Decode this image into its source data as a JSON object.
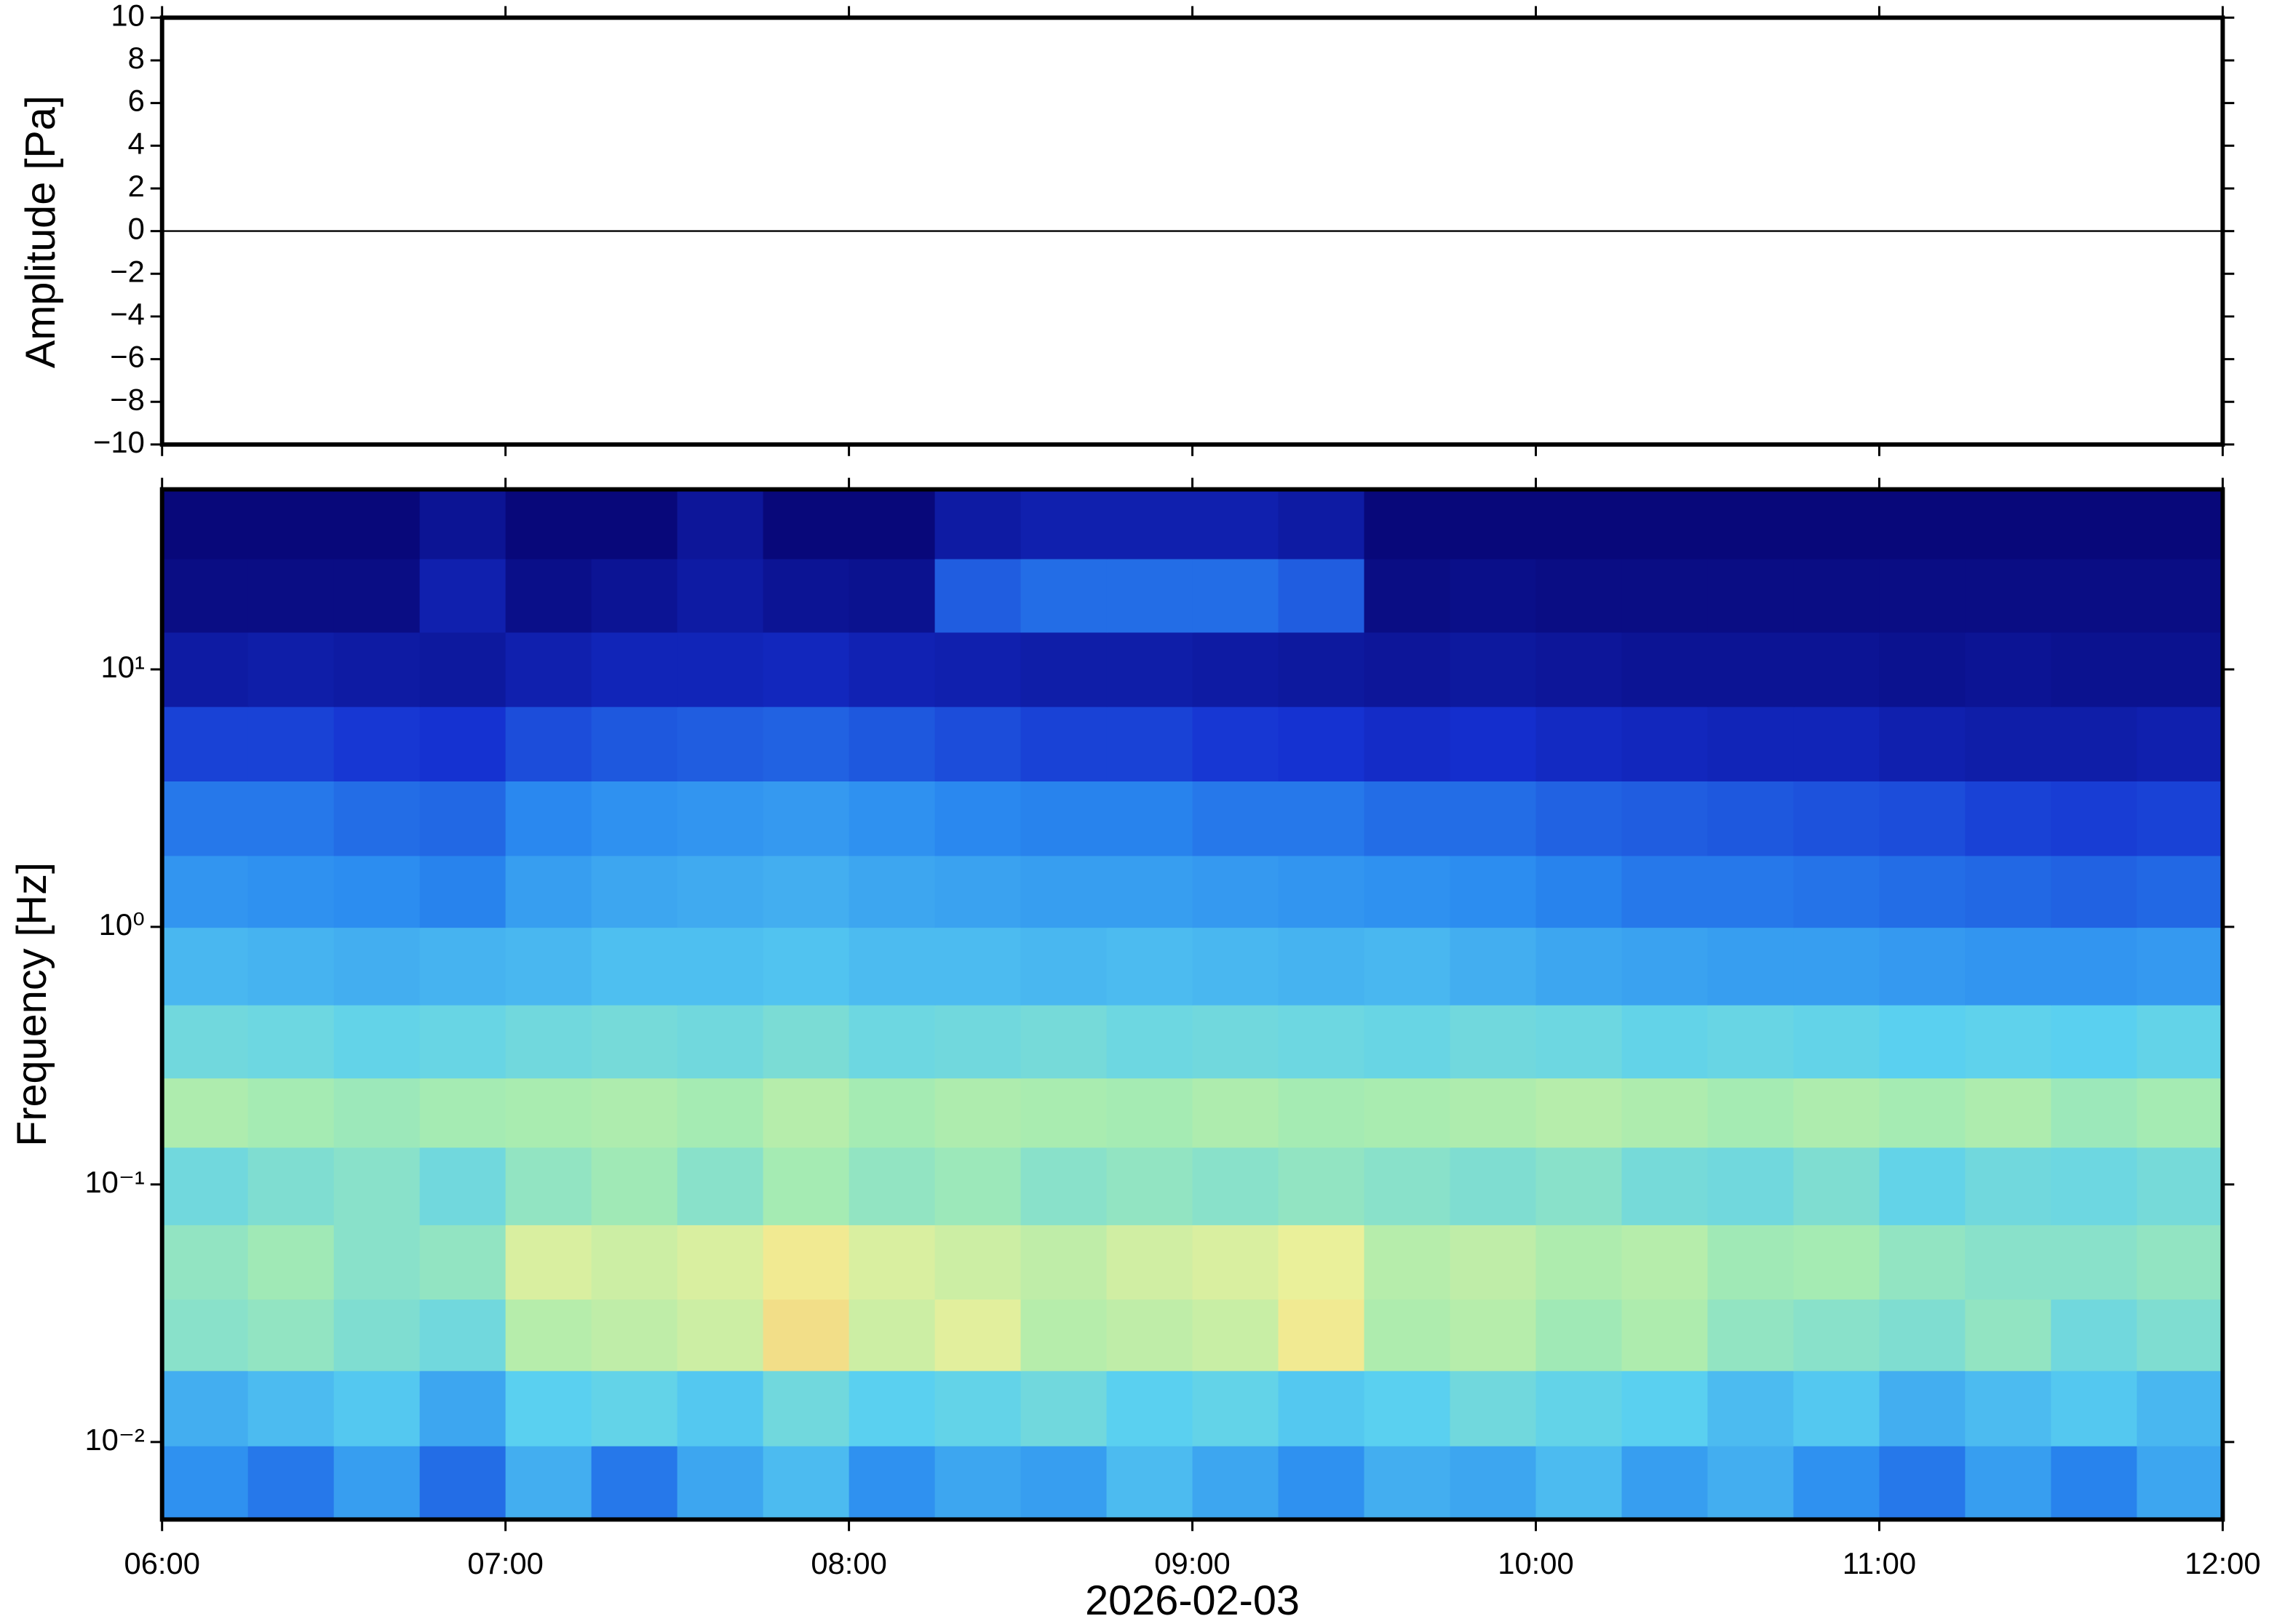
{
  "chart_data": [
    {
      "type": "line",
      "ylabel": "Amplitude [Pa]",
      "color": "#000000",
      "x": [
        "06:00",
        "06:15",
        "06:30",
        "06:45",
        "07:00",
        "07:15",
        "07:30",
        "07:45",
        "08:00",
        "08:15",
        "08:30",
        "08:45",
        "09:00",
        "09:15",
        "09:30",
        "09:45",
        "10:00",
        "10:15",
        "10:30",
        "10:45",
        "11:00",
        "11:15",
        "11:30",
        "11:45",
        "12:00"
      ],
      "values": [
        0,
        0,
        0,
        0,
        0,
        0,
        0,
        0,
        0,
        0,
        0,
        0,
        0,
        0,
        0,
        0,
        0,
        0,
        0,
        0,
        0,
        0,
        0,
        0,
        0
      ],
      "xlim": [
        "06:00",
        "12:00"
      ],
      "ylim": [
        -10,
        10
      ],
      "yticks": [
        {
          "value": -10,
          "label": "−10"
        },
        {
          "value": -8,
          "label": "−8"
        },
        {
          "value": -6,
          "label": "−6"
        },
        {
          "value": -4,
          "label": "−4"
        },
        {
          "value": -2,
          "label": "−2"
        },
        0,
        2,
        4,
        6,
        8,
        10
      ]
    },
    {
      "type": "spectrogram",
      "ylabel": "Frequency [Hz]",
      "xlabel": "2026-02-03",
      "yscale": "log",
      "xlim": [
        "06:00",
        "12:00"
      ],
      "xticks": [
        "06:00",
        "07:00",
        "08:00",
        "09:00",
        "10:00",
        "11:00",
        "12:00"
      ],
      "ylim": [
        0.005,
        50
      ],
      "yticks": [
        {
          "value": 0.01,
          "label": "10⁻²"
        },
        {
          "value": 0.1,
          "label": "10⁻¹"
        },
        {
          "value": 1,
          "label": "10⁰"
        },
        {
          "value": 10,
          "label": "10¹"
        }
      ],
      "colormap": [
        "#08087a",
        "#1530d0",
        "#2a8af0",
        "#5ad0f0",
        "#a8ecb0",
        "#f0f098",
        "#f8b060"
      ],
      "x_bins": [
        "06:00",
        "06:15",
        "06:30",
        "06:45",
        "07:00",
        "07:15",
        "07:30",
        "07:45",
        "08:00",
        "08:15",
        "08:30",
        "08:45",
        "09:00",
        "09:15",
        "09:30",
        "09:45",
        "10:00",
        "10:15",
        "10:30",
        "10:45",
        "11:00",
        "11:15",
        "11:30",
        "11:45",
        "12:00"
      ],
      "y_bins": [
        0.005,
        0.0097,
        0.019,
        0.036,
        0.07,
        0.14,
        0.26,
        0.5,
        1,
        1.9,
        3.7,
        7.2,
        14,
        27,
        50
      ],
      "values": [
        [
          0.35,
          0.3,
          0.38,
          0.28,
          0.42,
          0.3,
          0.4,
          0.45,
          0.35,
          0.4,
          0.38,
          0.45,
          0.4,
          0.35,
          0.42,
          0.4,
          0.45,
          0.38,
          0.42,
          0.35,
          0.3,
          0.38,
          0.32,
          0.4
        ],
        [
          0.42,
          0.45,
          0.48,
          0.4,
          0.5,
          0.52,
          0.48,
          0.55,
          0.5,
          0.52,
          0.55,
          0.5,
          0.52,
          0.48,
          0.5,
          0.55,
          0.52,
          0.5,
          0.45,
          0.48,
          0.42,
          0.45,
          0.48,
          0.44
        ],
        [
          0.6,
          0.62,
          0.58,
          0.55,
          0.7,
          0.72,
          0.75,
          0.88,
          0.75,
          0.8,
          0.7,
          0.72,
          0.74,
          0.85,
          0.68,
          0.7,
          0.65,
          0.68,
          0.62,
          0.6,
          0.58,
          0.62,
          0.55,
          0.58
        ],
        [
          0.62,
          0.65,
          0.6,
          0.62,
          0.78,
          0.75,
          0.78,
          0.85,
          0.78,
          0.75,
          0.72,
          0.76,
          0.78,
          0.82,
          0.7,
          0.72,
          0.68,
          0.7,
          0.65,
          0.66,
          0.62,
          0.6,
          0.6,
          0.62
        ],
        [
          0.55,
          0.58,
          0.6,
          0.55,
          0.62,
          0.65,
          0.6,
          0.66,
          0.62,
          0.64,
          0.6,
          0.62,
          0.6,
          0.62,
          0.6,
          0.58,
          0.6,
          0.56,
          0.55,
          0.58,
          0.52,
          0.55,
          0.54,
          0.56
        ],
        [
          0.68,
          0.66,
          0.64,
          0.66,
          0.67,
          0.68,
          0.66,
          0.7,
          0.66,
          0.68,
          0.67,
          0.66,
          0.68,
          0.66,
          0.67,
          0.68,
          0.7,
          0.68,
          0.66,
          0.68,
          0.66,
          0.68,
          0.64,
          0.66
        ],
        [
          0.55,
          0.54,
          0.52,
          0.53,
          0.55,
          0.56,
          0.55,
          0.57,
          0.54,
          0.55,
          0.56,
          0.54,
          0.55,
          0.54,
          0.53,
          0.55,
          0.54,
          0.52,
          0.53,
          0.52,
          0.5,
          0.51,
          0.5,
          0.52
        ],
        [
          0.44,
          0.43,
          0.42,
          0.43,
          0.44,
          0.46,
          0.46,
          0.47,
          0.45,
          0.45,
          0.44,
          0.45,
          0.44,
          0.43,
          0.44,
          0.42,
          0.4,
          0.39,
          0.38,
          0.38,
          0.37,
          0.36,
          0.36,
          0.37
        ],
        [
          0.36,
          0.35,
          0.34,
          0.32,
          0.38,
          0.4,
          0.41,
          0.42,
          0.4,
          0.39,
          0.38,
          0.38,
          0.37,
          0.36,
          0.35,
          0.34,
          0.32,
          0.3,
          0.3,
          0.29,
          0.28,
          0.27,
          0.26,
          0.27
        ],
        [
          0.3,
          0.3,
          0.28,
          0.27,
          0.33,
          0.35,
          0.36,
          0.37,
          0.35,
          0.33,
          0.32,
          0.32,
          0.3,
          0.3,
          0.28,
          0.28,
          0.26,
          0.25,
          0.24,
          0.23,
          0.22,
          0.2,
          0.19,
          0.2
        ],
        [
          0.2,
          0.2,
          0.18,
          0.17,
          0.22,
          0.24,
          0.25,
          0.26,
          0.24,
          0.22,
          0.2,
          0.2,
          0.18,
          0.17,
          0.15,
          0.16,
          0.14,
          0.13,
          0.12,
          0.12,
          0.1,
          0.09,
          0.09,
          0.1
        ],
        [
          0.08,
          0.09,
          0.08,
          0.07,
          0.1,
          0.12,
          0.12,
          0.13,
          0.11,
          0.1,
          0.09,
          0.09,
          0.08,
          0.07,
          0.06,
          0.07,
          0.06,
          0.05,
          0.05,
          0.05,
          0.04,
          0.05,
          0.04,
          0.04
        ],
        [
          0.02,
          0.02,
          0.02,
          0.1,
          0.03,
          0.05,
          0.08,
          0.05,
          0.04,
          0.25,
          0.28,
          0.28,
          0.28,
          0.25,
          0.02,
          0.03,
          0.02,
          0.02,
          0.02,
          0.02,
          0.02,
          0.02,
          0.02,
          0.02
        ],
        [
          0,
          0,
          0,
          0.05,
          0,
          0,
          0.06,
          0,
          0,
          0.08,
          0.1,
          0.1,
          0.1,
          0.08,
          0,
          0,
          0,
          0,
          0,
          0,
          0,
          0,
          0,
          0
        ]
      ]
    }
  ]
}
